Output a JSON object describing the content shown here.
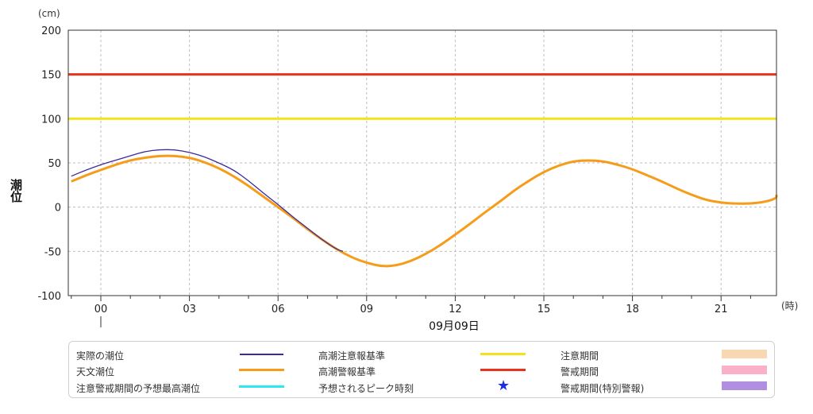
{
  "chart_data": {
    "type": "line",
    "y_unit": "(cm)",
    "ylabel": "潮位",
    "x_unit": "(時)",
    "date_label": "09月09日",
    "ylim": [
      -100,
      200
    ],
    "yticks": [
      -100,
      -50,
      0,
      50,
      100,
      150,
      200
    ],
    "xlim": [
      -0.5,
      23.5
    ],
    "xticks": [
      {
        "hour": 0,
        "label": "00"
      },
      {
        "hour": 3,
        "label": "03"
      },
      {
        "hour": 6,
        "label": "06"
      },
      {
        "hour": 9,
        "label": "09"
      },
      {
        "hour": 12,
        "label": "12"
      },
      {
        "hour": 15,
        "label": "15"
      },
      {
        "hour": 18,
        "label": "18"
      },
      {
        "hour": 21,
        "label": "21"
      }
    ],
    "grid": true,
    "thresholds": [
      {
        "name": "高潮警報基準",
        "value": 150,
        "color": "#e8331c"
      },
      {
        "name": "高潮注意報基準",
        "value": 100,
        "color": "#f5e31a"
      }
    ],
    "series": [
      {
        "name": "天文潮位",
        "color": "#f59c1a",
        "x": [
          -1,
          -0.5,
          0,
          0.5,
          1,
          1.5,
          2,
          2.5,
          3,
          3.5,
          4,
          4.5,
          5,
          5.5,
          6,
          6.5,
          7,
          7.5,
          8,
          8.5,
          9,
          9.5,
          10,
          10.5,
          11,
          11.5,
          12,
          12.5,
          13,
          13.5,
          14,
          14.5,
          15,
          15.5,
          16,
          16.5,
          17,
          17.5,
          18,
          18.5,
          19,
          19.5,
          20,
          20.5,
          21,
          21.5,
          22,
          22.5,
          23,
          23.5
        ],
        "values": [
          29,
          36,
          42,
          48,
          53,
          56,
          58,
          58,
          56,
          51,
          44,
          35,
          24,
          12,
          0,
          -12,
          -25,
          -37,
          -48,
          -57,
          -63,
          -67,
          -66,
          -61,
          -53,
          -43,
          -31,
          -19,
          -6,
          6,
          19,
          30,
          40,
          47,
          52,
          53,
          52,
          48,
          43,
          36,
          29,
          21,
          14,
          8,
          5,
          4,
          4,
          6,
          10,
          14
        ]
      },
      {
        "name": "実際の潮位",
        "color": "#3c2a9e",
        "x": [
          -1,
          -0.5,
          0,
          0.5,
          1,
          1.5,
          2,
          2.5,
          3,
          3.5,
          4,
          4.5,
          5,
          5.5,
          6,
          6.5,
          7,
          7.5,
          8,
          8.2
        ],
        "values": [
          35,
          42,
          48,
          53,
          58,
          63,
          65,
          65,
          62,
          57,
          50,
          42,
          30,
          16,
          3,
          -11,
          -24,
          -37,
          -48,
          -50
        ]
      }
    ],
    "legend": {
      "placement": "bottom",
      "items": [
        {
          "label": "実際の潮位",
          "kind": "line",
          "color": "#3c2a9e"
        },
        {
          "label": "高潮注意報基準",
          "kind": "line",
          "color": "#f5e31a"
        },
        {
          "label": "注意期間",
          "kind": "box",
          "color": "#f9d7b0"
        },
        {
          "label": "天文潮位",
          "kind": "line",
          "color": "#f59c1a"
        },
        {
          "label": "高潮警報基準",
          "kind": "line",
          "color": "#e8331c"
        },
        {
          "label": "警戒期間",
          "kind": "box",
          "color": "#f9b0c8"
        },
        {
          "label": "注意警戒期間の予想最高潮位",
          "kind": "line",
          "color": "#2de8f0"
        },
        {
          "label": "予想されるピーク時刻",
          "kind": "star",
          "color": "#1a2fe0",
          "symbol": "★"
        },
        {
          "label": "警戒期間(特別警報)",
          "kind": "box",
          "color": "#b08ee0"
        }
      ]
    }
  }
}
